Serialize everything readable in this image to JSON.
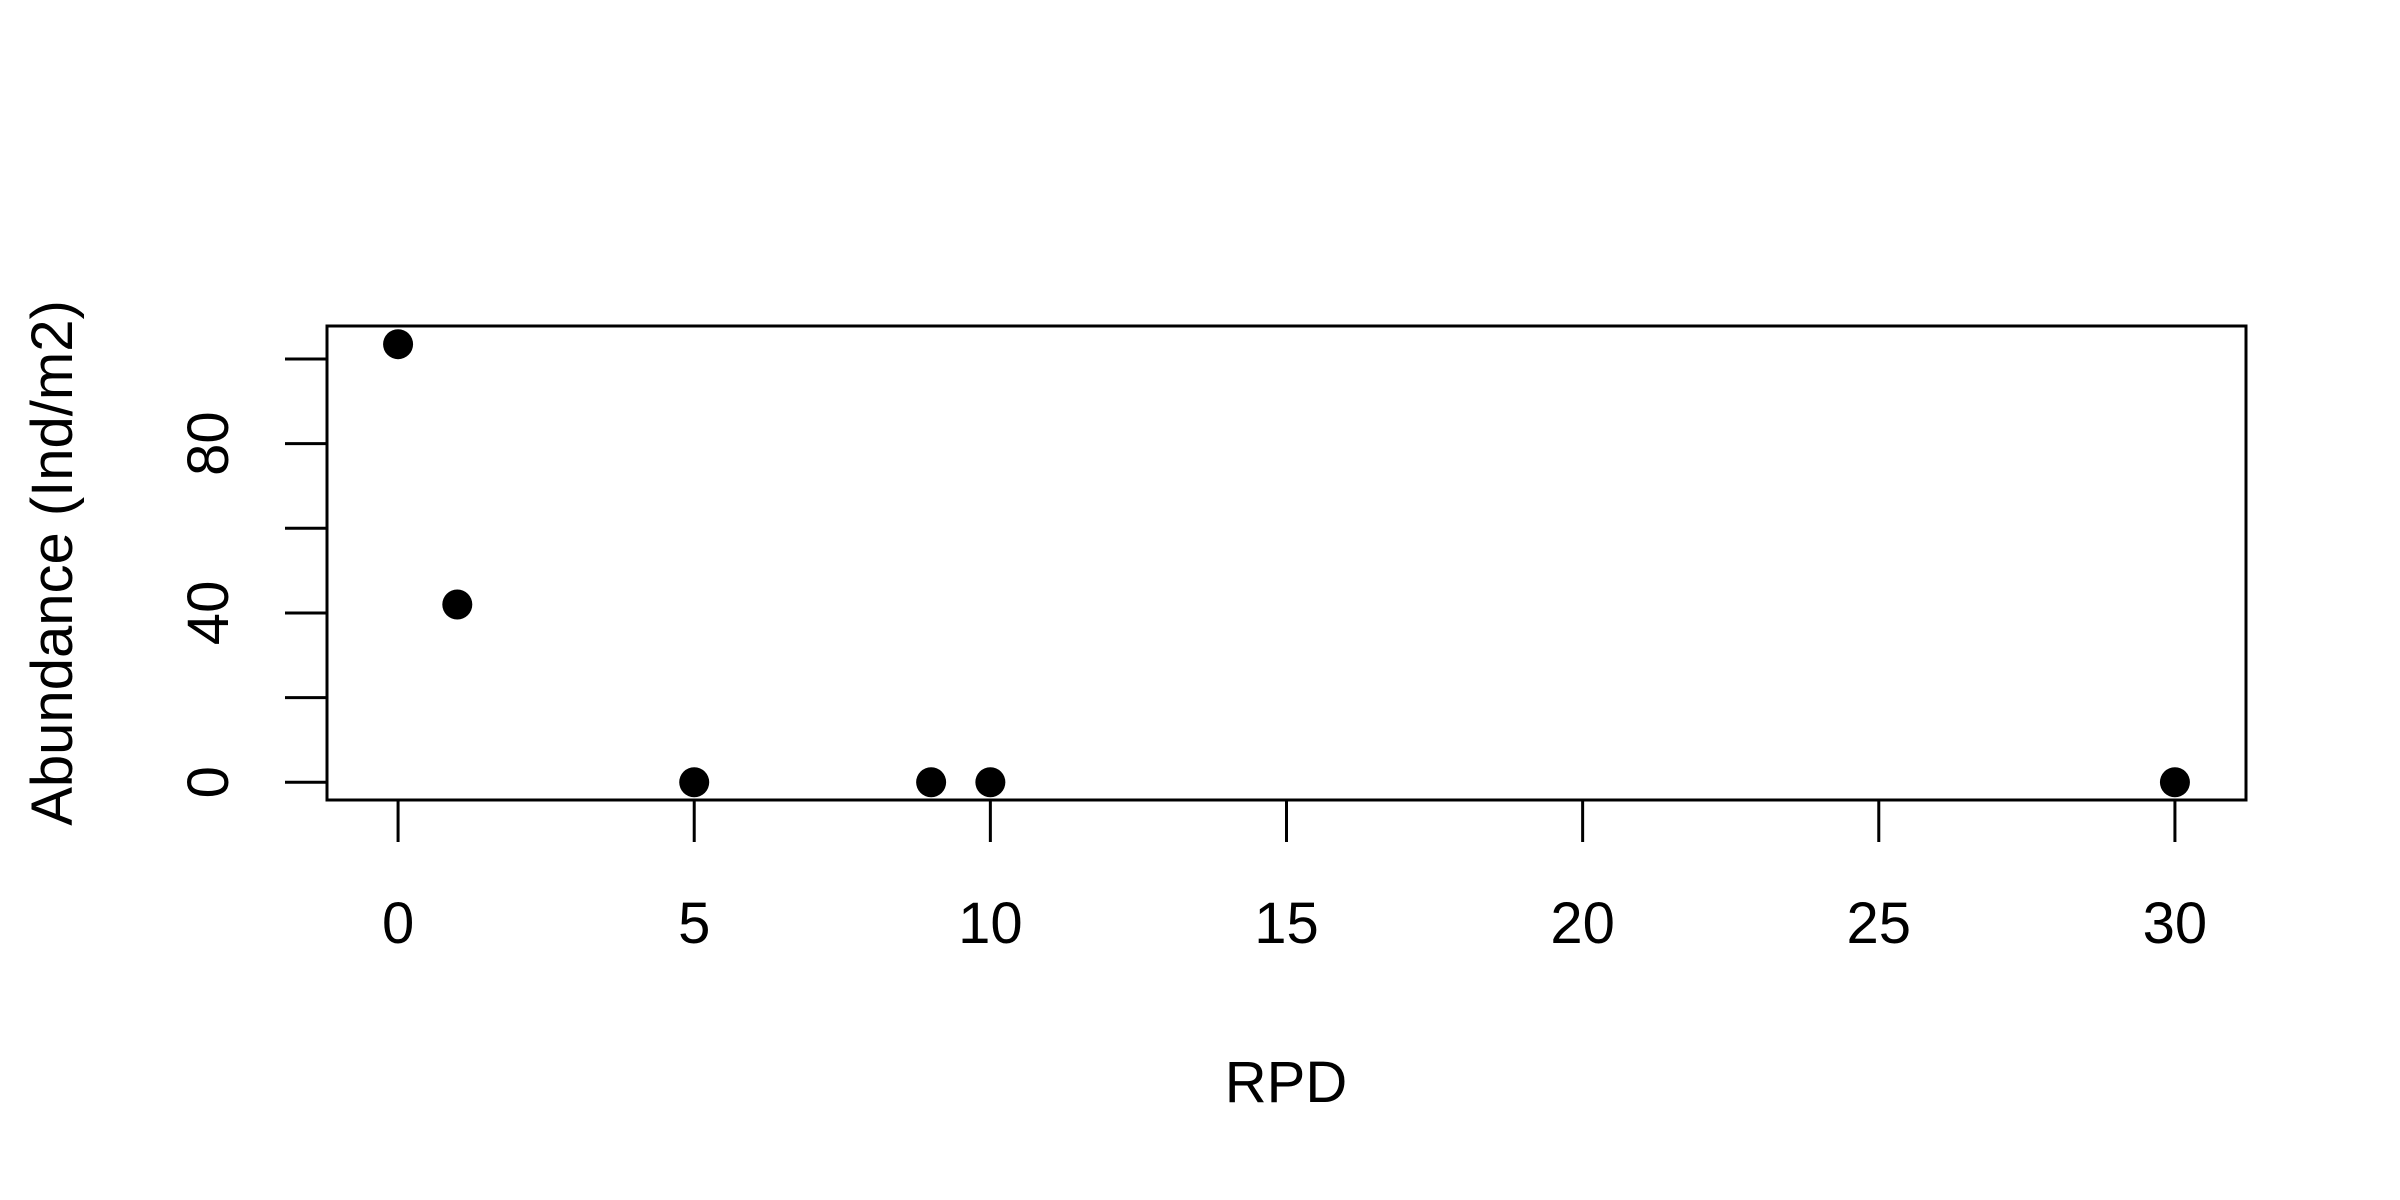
{
  "chart_data": {
    "type": "scatter",
    "title": "",
    "xlabel": "RPD",
    "ylabel": "Abundance (Ind/m2)",
    "xlim": [
      -1.2,
      31.2
    ],
    "ylim": [
      -4.2,
      107.8
    ],
    "xticks": [
      0,
      5,
      10,
      15,
      20,
      25,
      30
    ],
    "yticks": [
      0,
      20,
      40,
      60,
      80,
      100
    ],
    "yticklabels": [
      "0",
      "",
      "40",
      "",
      "80",
      ""
    ],
    "grid": false,
    "series": [
      {
        "x": [
          0,
          1,
          5,
          9,
          10,
          30
        ],
        "y": [
          103.5,
          42,
          0,
          0,
          0,
          0
        ],
        "color": "#000000",
        "marker": "filled-circle"
      }
    ]
  }
}
